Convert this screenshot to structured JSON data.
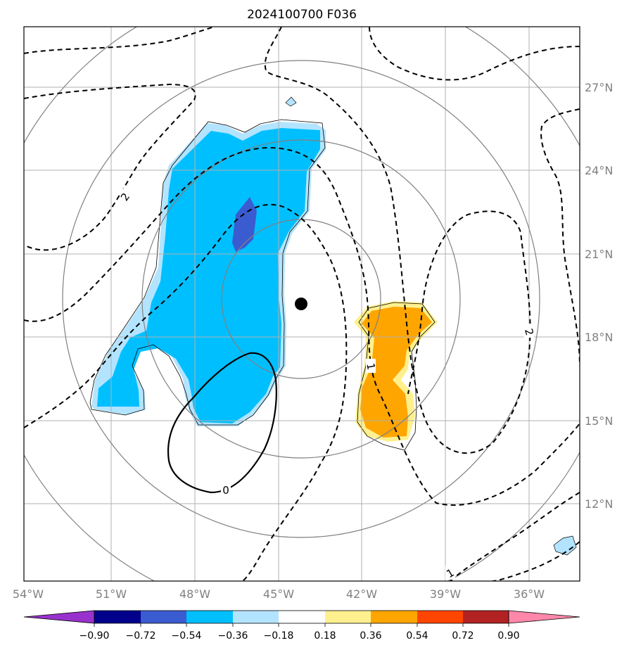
{
  "title": "2024100700 F036",
  "map": {
    "lon_labels": [
      "54°W",
      "51°W",
      "48°W",
      "45°W",
      "42°W",
      "39°W",
      "36°W"
    ],
    "lat_labels": [
      "27°N",
      "24°N",
      "21°N",
      "18°N",
      "15°N",
      "12°N"
    ],
    "storm_center": {
      "lon": "44.2°W",
      "lat": "19.3°N"
    },
    "contour_labels": [
      "2",
      "2",
      "1",
      "1",
      "0"
    ]
  },
  "colorbar": {
    "labels": [
      "−0.90",
      "−0.72",
      "−0.54",
      "−0.36",
      "−0.18",
      "0.18",
      "0.36",
      "0.54",
      "0.72",
      "0.90"
    ],
    "colors": [
      "#9932cc",
      "#00008b",
      "#3b5bd1",
      "#00bfff",
      "#b3e4ff",
      "#ffffff",
      "#fff08f",
      "#ffa500",
      "#ff4500",
      "#b22222",
      "#ff88aa"
    ]
  },
  "colors": {
    "grid": "#b0b0b0",
    "range_rings": "#808080",
    "contour": "#000000"
  }
}
